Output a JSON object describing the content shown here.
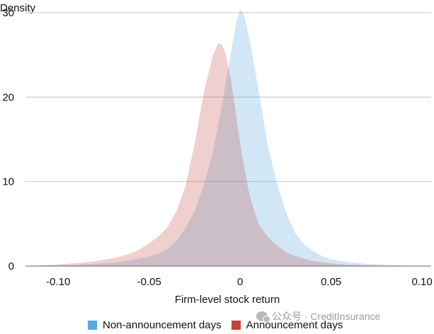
{
  "chart_data": {
    "type": "area",
    "title": "",
    "xlabel": "Firm-level stock return",
    "ylabel": "Density",
    "xlim": [
      -0.118,
      0.105
    ],
    "ylim": [
      0,
      31.5
    ],
    "x_ticks": [
      -0.1,
      -0.05,
      0.0,
      0.05,
      0.1
    ],
    "x_tick_labels": [
      "-0.10",
      "-0.05",
      "0",
      "0.05",
      "0.10"
    ],
    "y_ticks": [
      0,
      10,
      20,
      30
    ],
    "y_tick_labels": [
      "0",
      "10",
      "20",
      "30"
    ],
    "grid": "horizontal",
    "legend_position": "bottom",
    "series": [
      {
        "name": "Non-announcement days",
        "color": "#5aa9e0",
        "fill": "#cfe4f5",
        "x": [
          -0.12,
          -0.1,
          -0.09,
          -0.08,
          -0.07,
          -0.06,
          -0.05,
          -0.045,
          -0.04,
          -0.035,
          -0.03,
          -0.025,
          -0.02,
          -0.015,
          -0.01,
          -0.005,
          -0.002,
          0.0,
          0.002,
          0.005,
          0.01,
          0.015,
          0.02,
          0.025,
          0.03,
          0.035,
          0.04,
          0.045,
          0.05,
          0.06,
          0.07,
          0.08,
          0.09,
          0.1,
          0.105
        ],
        "y": [
          0.0,
          0.1,
          0.15,
          0.25,
          0.4,
          0.7,
          1.1,
          1.5,
          2.0,
          3.0,
          4.5,
          6.5,
          9.5,
          13.5,
          19.0,
          25.5,
          29.0,
          30.4,
          29.8,
          27.0,
          21.0,
          14.5,
          10.0,
          6.5,
          4.0,
          2.6,
          1.8,
          1.2,
          0.8,
          0.45,
          0.25,
          0.15,
          0.08,
          0.04,
          0.0
        ]
      },
      {
        "name": "Announcement days",
        "color": "#c0433c",
        "fill": "#f1cccf",
        "x": [
          -0.12,
          -0.1,
          -0.09,
          -0.08,
          -0.07,
          -0.06,
          -0.055,
          -0.05,
          -0.045,
          -0.04,
          -0.035,
          -0.03,
          -0.025,
          -0.02,
          -0.015,
          -0.012,
          -0.01,
          -0.008,
          -0.005,
          0.0,
          0.005,
          0.01,
          0.015,
          0.02,
          0.025,
          0.03,
          0.04,
          0.05,
          0.06,
          0.07,
          0.08,
          0.09,
          0.1,
          0.105
        ],
        "y": [
          0.0,
          0.2,
          0.35,
          0.55,
          0.9,
          1.5,
          2.0,
          2.7,
          3.5,
          4.6,
          6.5,
          9.5,
          14.5,
          20.5,
          25.0,
          26.4,
          26.2,
          25.2,
          22.0,
          14.5,
          8.5,
          5.0,
          3.5,
          2.5,
          1.7,
          1.2,
          0.6,
          0.3,
          0.15,
          0.08,
          0.04,
          0.02,
          0.01,
          0.0
        ]
      }
    ]
  },
  "watermark": "公众号 · CreditInsurance"
}
